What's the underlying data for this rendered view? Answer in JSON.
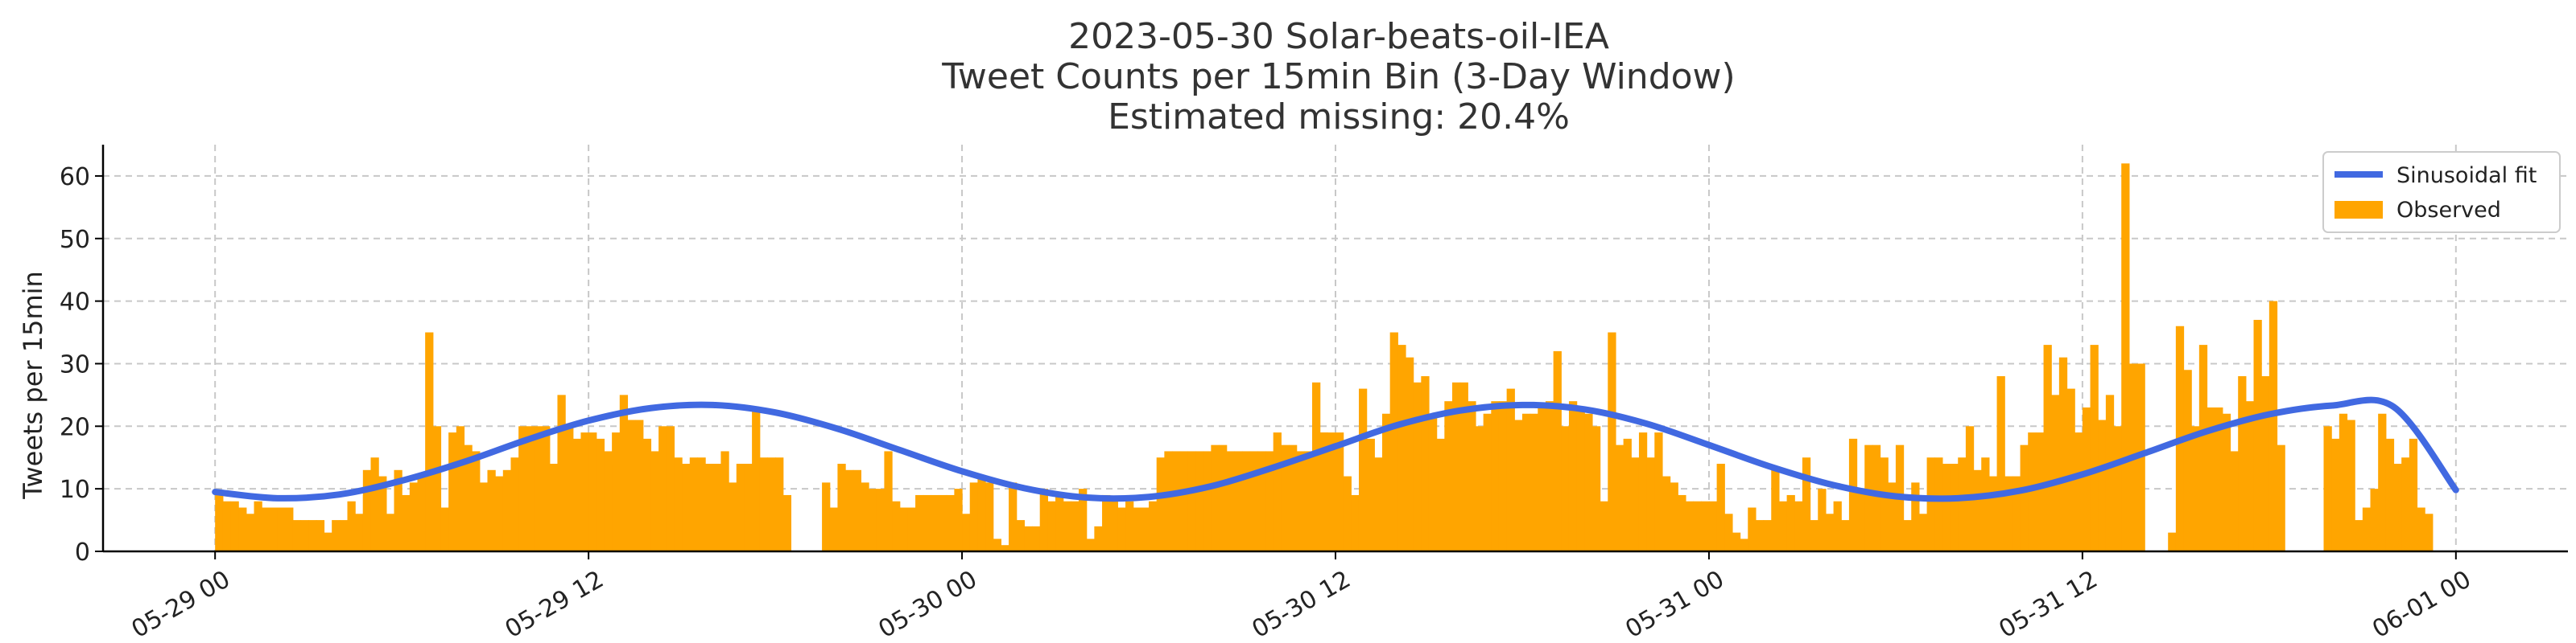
{
  "chart_data": {
    "type": "bar",
    "title_lines": [
      "2023-05-30 Solar-beats-oil-IEA",
      "Tweet Counts per 15min Bin (3-Day Window)",
      "Estimated missing: 20.4%"
    ],
    "xlabel": "",
    "ylabel": "Tweets per 15min",
    "ylim": [
      0,
      65
    ],
    "yticks": [
      0,
      10,
      20,
      30,
      40,
      50,
      60
    ],
    "xticks": [
      "05-29 00",
      "05-29 12",
      "05-30 00",
      "05-30 12",
      "05-31 00",
      "05-31 12",
      "06-01 00"
    ],
    "xtick_rotation": 30,
    "x_unit": "hours from 2023-05-29 00:00",
    "x_range": [
      -3.6,
      75.6
    ],
    "bin_width_hours": 0.25,
    "grid": true,
    "legend_position": "top-right",
    "series": [
      {
        "name": "Sinusoidal fit",
        "kind": "line",
        "color": "#4169e1",
        "x": [
          0,
          2,
          4,
          6,
          8,
          10,
          12,
          14,
          16,
          18,
          20,
          22,
          24,
          26,
          28,
          30,
          32,
          34,
          36,
          38,
          40,
          42,
          44,
          46,
          48,
          50,
          52,
          54,
          56,
          58,
          60,
          62,
          64,
          66,
          68,
          70,
          72
        ],
        "values": [
          9.5,
          8.5,
          9.1,
          11.3,
          14.3,
          17.8,
          20.9,
          22.9,
          23.4,
          22.2,
          19.6,
          16.2,
          12.8,
          10.1,
          8.6,
          8.7,
          10.4,
          13.4,
          16.8,
          20.2,
          22.5,
          23.4,
          22.7,
          20.4,
          17.0,
          13.5,
          10.6,
          8.8,
          8.5,
          9.7,
          12.3,
          15.7,
          19.2,
          21.9,
          23.3,
          23.1,
          9.8
        ]
      },
      {
        "name": "Observed",
        "kind": "bar",
        "color": "#ffa500",
        "segments": [
          {
            "start": 0.0,
            "values": [
              9,
              8,
              8,
              7,
              6,
              8,
              7,
              7,
              7,
              7,
              5,
              5,
              5,
              5,
              3,
              5,
              5,
              8,
              6,
              13,
              12,
              11,
              6
            ]
          },
          {
            "start": 4.75,
            "values": [
              9,
              15,
              12,
              4,
              13,
              9,
              11,
              12,
              35,
              20,
              7,
              19,
              20,
              17,
              16,
              11,
              13,
              12,
              13,
              15,
              20,
              20,
              20,
              20,
              14,
              16,
              18,
              14,
              10,
              15,
              15,
              12,
              19,
              17,
              17
            ]
          },
          {
            "start": 11.0,
            "values": [
              25,
              20,
              18,
              19,
              19,
              18,
              16,
              14,
              25,
              21,
              21,
              18,
              16,
              20,
              20,
              15,
              14,
              15,
              15,
              14,
              14,
              16,
              11,
              14,
              14,
              23,
              15,
              15,
              15,
              9
            ]
          },
          {
            "start": 19.5,
            "values": [
              11,
              7,
              14,
              13,
              13,
              11,
              10,
              10,
              16,
              8,
              7,
              7,
              9,
              9,
              9,
              9,
              9,
              10,
              6,
              11,
              12,
              11,
              2,
              1,
              11,
              5,
              4,
              4,
              10,
              8,
              9,
              8,
              8,
              10,
              2,
              4,
              9,
              8,
              7,
              8,
              7,
              7,
              8,
              15,
              10,
              7,
              7,
              7,
              10,
              9,
              13,
              10,
              11
            ]
          },
          {
            "start": 30.5,
            "values": [
              16,
              16,
              16,
              16,
              16,
              16,
              17,
              17,
              16,
              16,
              16,
              16,
              16,
              16,
              19,
              17,
              17,
              16,
              16,
              27,
              19,
              13
            ]
          },
          {
            "start": 34.75,
            "values": [
              8,
              15,
              19,
              19,
              19,
              19,
              12,
              9,
              26,
              18,
              15,
              22,
              35,
              33,
              31,
              27,
              28,
              22,
              18,
              24,
              27,
              27,
              24,
              20,
              22,
              24,
              24,
              26,
              21,
              22,
              22,
              23,
              24
            ]
          },
          {
            "start": 42.75,
            "values": [
              22,
              32,
              20,
              24,
              23,
              22,
              20,
              8,
              35,
              17,
              18,
              15,
              19,
              15,
              19,
              12,
              11,
              9,
              8,
              8,
              8,
              8,
              14,
              6,
              3,
              2
            ]
          },
          {
            "start": 49.25,
            "values": [
              7,
              5,
              5,
              13,
              8,
              9,
              8,
              15,
              5,
              10,
              6,
              8,
              5,
              18,
              10,
              17,
              17,
              15,
              11,
              17,
              5,
              11,
              6,
              15,
              15,
              14,
              14,
              15,
              20,
              13,
              15,
              12,
              28,
              12,
              12,
              17,
              19,
              19
            ]
          },
          {
            "start": 58.5,
            "values": [
              7,
              33,
              25,
              31,
              26,
              19,
              23,
              33,
              21,
              25,
              20,
              62,
              30,
              30
            ]
          },
          {
            "start": 62.75,
            "values": [
              3,
              36,
              29,
              20,
              33,
              23,
              23,
              22,
              16,
              28,
              24,
              37,
              28,
              40,
              17
            ]
          },
          {
            "start": 67.75,
            "values": [
              20,
              18,
              22,
              21,
              5,
              7,
              10,
              22,
              18,
              14,
              15,
              18,
              7,
              6
            ]
          }
        ]
      }
    ]
  }
}
